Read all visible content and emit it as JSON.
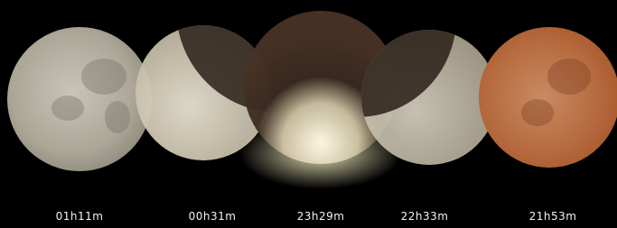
{
  "labels": [
    "01h11m",
    "00h31m",
    "23h29m",
    "22h33m",
    "21h53m"
  ]
}
